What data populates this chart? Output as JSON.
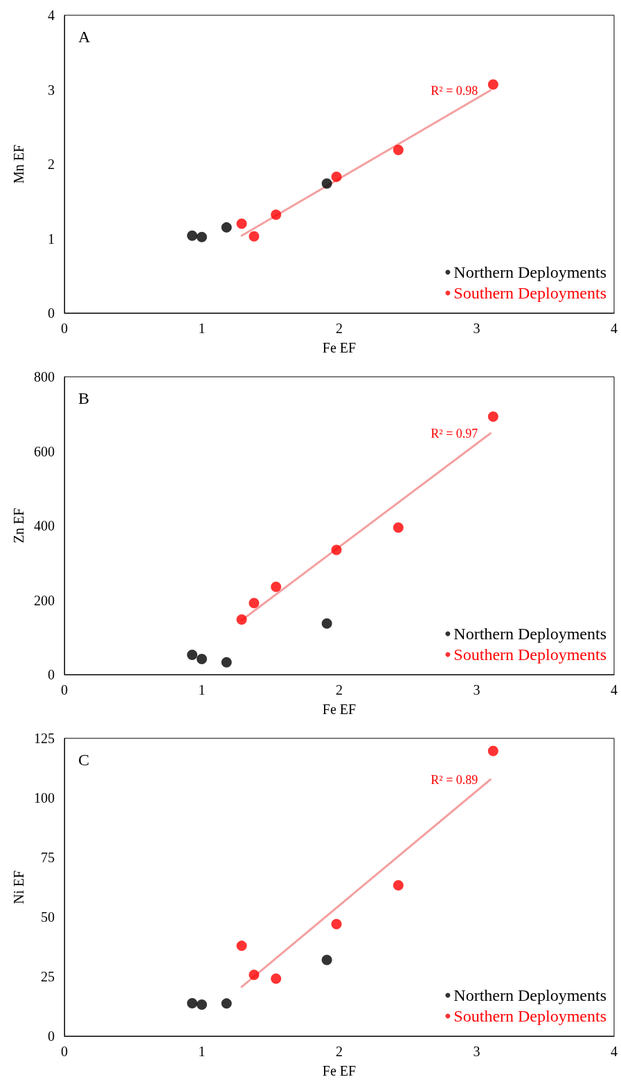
{
  "chart_data": [
    {
      "type": "scatter",
      "title": "A",
      "xlabel": "Fe EF",
      "ylabel": "Mn EF",
      "xlim": [
        0,
        4
      ],
      "xticks": [
        0,
        1,
        2,
        3,
        4
      ],
      "ylim": [
        0,
        4
      ],
      "yticks": [
        0,
        1,
        2,
        3,
        4
      ],
      "grid": false,
      "legend": "bottom right",
      "marker": "circle",
      "series": [
        {
          "name": "Northern Deployments",
          "color": "#000000",
          "x": [
            0.93,
            1.0,
            1.18,
            1.91
          ],
          "values": [
            1.04,
            1.02,
            1.15,
            1.74
          ]
        },
        {
          "name": "Southern Deployments",
          "color": "#ff0000",
          "x": [
            1.29,
            1.38,
            1.54,
            1.98,
            2.43,
            3.12
          ],
          "values": [
            1.2,
            1.03,
            1.32,
            1.83,
            2.19,
            3.07
          ]
        },
        {
          "type": "line",
          "color": "#f4a0a0",
          "marker": "none",
          "x": [
            1.29,
            3.1
          ],
          "values": [
            1.04,
            2.99
          ]
        }
      ],
      "annotations": [
        "R² = 0.98"
      ]
    },
    {
      "type": "scatter",
      "title": "B",
      "xlabel": "Fe EF",
      "ylabel": "Zn EF",
      "xlim": [
        0,
        4
      ],
      "xticks": [
        0,
        1,
        2,
        3,
        4
      ],
      "ylim": [
        0,
        800
      ],
      "yticks": [
        0,
        200,
        400,
        600,
        800
      ],
      "grid": false,
      "legend": "bottom right",
      "marker": "circle",
      "series": [
        {
          "name": "Northern Deployments",
          "color": "#000000",
          "x": [
            0.93,
            1.0,
            1.18,
            1.91
          ],
          "values": [
            53,
            42,
            33,
            137
          ]
        },
        {
          "name": "Southern Deployments",
          "color": "#ff0000",
          "x": [
            1.29,
            1.38,
            1.54,
            1.98,
            2.43,
            3.12
          ],
          "values": [
            148,
            192,
            236,
            335,
            395,
            693
          ]
        },
        {
          "type": "line",
          "color": "#f4a0a0",
          "marker": "none",
          "x": [
            1.29,
            3.1
          ],
          "values": [
            146,
            648
          ]
        }
      ],
      "annotations": [
        "R² = 0.97"
      ]
    },
    {
      "type": "scatter",
      "title": "C",
      "xlabel": "Fe EF",
      "ylabel": "Ni EF",
      "xlim": [
        0,
        4
      ],
      "xticks": [
        0,
        1,
        2,
        3,
        4
      ],
      "ylim": [
        0,
        125
      ],
      "yticks": [
        0,
        25,
        50,
        75,
        100,
        125
      ],
      "grid": false,
      "legend": "bottom right",
      "marker": "circle",
      "series": [
        {
          "name": "Northern Deployments",
          "color": "#000000",
          "x": [
            0.93,
            1.0,
            1.18,
            1.91
          ],
          "values": [
            13.8,
            13.2,
            13.7,
            32.0
          ]
        },
        {
          "name": "Southern Deployments",
          "color": "#ff0000",
          "x": [
            1.29,
            1.38,
            1.54,
            1.98,
            2.43,
            3.12
          ],
          "values": [
            37.9,
            25.7,
            24.1,
            47.0,
            63.3,
            119.7
          ]
        },
        {
          "type": "line",
          "color": "#f4a0a0",
          "marker": "none",
          "x": [
            1.29,
            3.1
          ],
          "values": [
            20.7,
            107.7
          ]
        }
      ],
      "annotations": [
        "R² = 0.89"
      ]
    }
  ]
}
